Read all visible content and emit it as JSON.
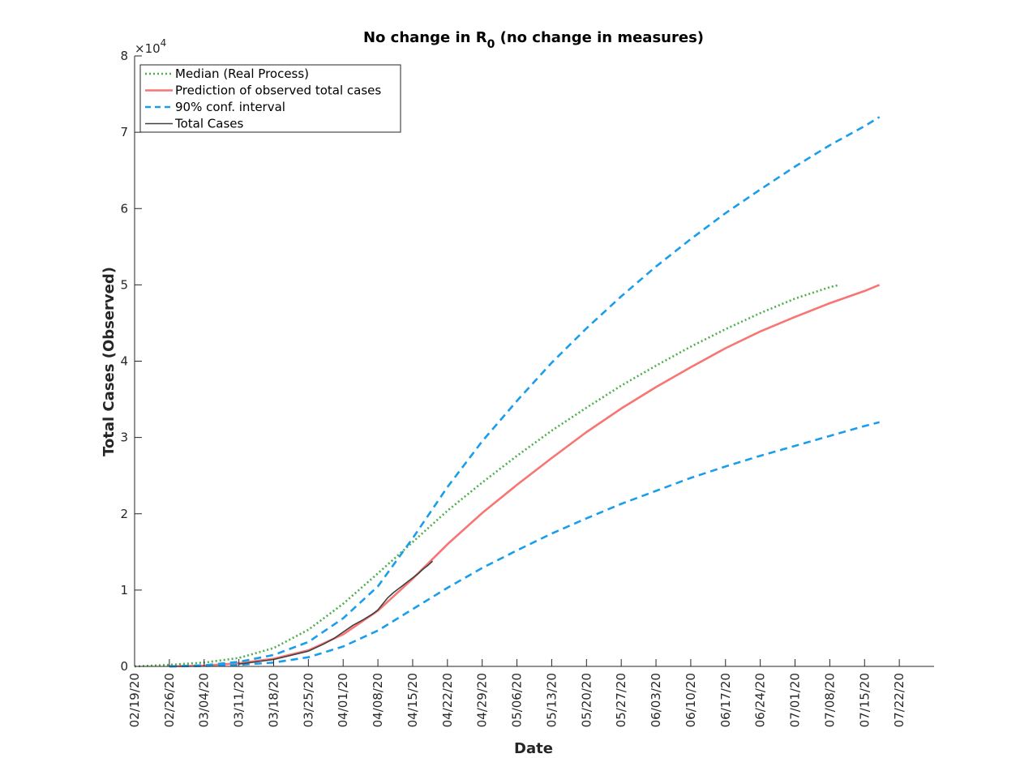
{
  "chart_data": {
    "type": "line",
    "title_main": "No change in R",
    "title_sub": "0",
    "title_rest": " (no change in measures)",
    "xlabel": "Date",
    "ylabel": "Total Cases (Observed)",
    "y_exponent_base": "×10",
    "y_exponent_power": "4",
    "xlim": [
      0,
      161
    ],
    "ylim": [
      0,
      80000
    ],
    "y_ticks": [
      {
        "value": 0,
        "label": "0"
      },
      {
        "value": 10000,
        "label": "1"
      },
      {
        "value": 20000,
        "label": "2"
      },
      {
        "value": 30000,
        "label": "3"
      },
      {
        "value": 40000,
        "label": "4"
      },
      {
        "value": 50000,
        "label": "5"
      },
      {
        "value": 60000,
        "label": "6"
      },
      {
        "value": 70000,
        "label": "7"
      },
      {
        "value": 80000,
        "label": "8"
      }
    ],
    "x_ticks": [
      {
        "value": 0,
        "label": "02/19/20"
      },
      {
        "value": 7,
        "label": "02/26/20"
      },
      {
        "value": 14,
        "label": "03/04/20"
      },
      {
        "value": 21,
        "label": "03/11/20"
      },
      {
        "value": 28,
        "label": "03/18/20"
      },
      {
        "value": 35,
        "label": "03/25/20"
      },
      {
        "value": 42,
        "label": "04/01/20"
      },
      {
        "value": 49,
        "label": "04/08/20"
      },
      {
        "value": 56,
        "label": "04/15/20"
      },
      {
        "value": 63,
        "label": "04/22/20"
      },
      {
        "value": 70,
        "label": "04/29/20"
      },
      {
        "value": 77,
        "label": "05/06/20"
      },
      {
        "value": 84,
        "label": "05/13/20"
      },
      {
        "value": 91,
        "label": "05/20/20"
      },
      {
        "value": 98,
        "label": "05/27/20"
      },
      {
        "value": 105,
        "label": "06/03/20"
      },
      {
        "value": 112,
        "label": "06/10/20"
      },
      {
        "value": 119,
        "label": "06/17/20"
      },
      {
        "value": 126,
        "label": "06/24/20"
      },
      {
        "value": 133,
        "label": "07/01/20"
      },
      {
        "value": 140,
        "label": "07/08/20"
      },
      {
        "value": 147,
        "label": "07/15/20"
      },
      {
        "value": 154,
        "label": "07/22/20"
      }
    ],
    "legend": {
      "position": "top-left",
      "entries": [
        {
          "label": "Median (Real Process)",
          "color": "#4daf4a",
          "style": "dotted"
        },
        {
          "label": "Prediction of observed total cases",
          "color": "#f87574",
          "style": "solid"
        },
        {
          "label": "90% conf. interval",
          "color": "#1a9eec",
          "style": "dashed"
        },
        {
          "label": "Total Cases",
          "color": "#404040",
          "style": "solid"
        }
      ]
    },
    "series": [
      {
        "name": "Median (Real Process)",
        "color": "#4daf4a",
        "style": "dotted",
        "x": [
          0,
          7,
          14,
          21,
          28,
          35,
          42,
          49,
          56,
          63,
          70,
          77,
          84,
          91,
          98,
          105,
          112,
          119,
          126,
          133,
          140,
          142
        ],
        "y": [
          0,
          200,
          500,
          1100,
          2400,
          4800,
          8200,
          12200,
          16300,
          20400,
          24100,
          27600,
          30900,
          33900,
          36800,
          39400,
          41900,
          44200,
          46300,
          48200,
          49700,
          50000
        ]
      },
      {
        "name": "Prediction of observed total cases",
        "color": "#f87574",
        "style": "solid",
        "x": [
          7,
          14,
          21,
          28,
          35,
          42,
          49,
          56,
          63,
          70,
          77,
          84,
          91,
          98,
          105,
          112,
          119,
          126,
          133,
          140,
          147,
          150
        ],
        "y": [
          0,
          100,
          400,
          1000,
          2100,
          4200,
          7300,
          11500,
          16000,
          20100,
          23800,
          27300,
          30700,
          33800,
          36600,
          39200,
          41700,
          43900,
          45800,
          47600,
          49200,
          50000
        ]
      },
      {
        "name": "90% conf. interval (upper)",
        "color": "#1a9eec",
        "style": "dashed",
        "x": [
          7,
          14,
          21,
          28,
          35,
          42,
          49,
          56,
          63,
          70,
          77,
          84,
          91,
          98,
          105,
          112,
          119,
          126,
          133,
          140,
          147,
          150
        ],
        "y": [
          0,
          150,
          600,
          1500,
          3200,
          6300,
          10500,
          16800,
          23500,
          29500,
          34800,
          39800,
          44300,
          48500,
          52400,
          56000,
          59400,
          62500,
          65500,
          68300,
          70800,
          72000
        ]
      },
      {
        "name": "90% conf. interval (lower)",
        "color": "#1a9eec",
        "style": "dashed",
        "x": [
          7,
          14,
          21,
          28,
          35,
          42,
          49,
          56,
          63,
          70,
          77,
          84,
          91,
          98,
          105,
          112,
          119,
          126,
          133,
          140,
          147,
          150
        ],
        "y": [
          0,
          50,
          200,
          500,
          1200,
          2600,
          4700,
          7500,
          10300,
          12900,
          15200,
          17400,
          19400,
          21300,
          23000,
          24700,
          26200,
          27600,
          28900,
          30200,
          31500,
          32000
        ]
      },
      {
        "name": "Total Cases",
        "color": "#404040",
        "style": "solid",
        "x": [
          21,
          28,
          35,
          38,
          40,
          42,
          44,
          46,
          48,
          49,
          50,
          51,
          52,
          53,
          54,
          55,
          56,
          57,
          58,
          59,
          60
        ],
        "y": [
          300,
          900,
          2000,
          2900,
          3600,
          4500,
          5400,
          6100,
          6900,
          7400,
          8200,
          9000,
          9600,
          10100,
          10600,
          11100,
          11600,
          12100,
          12700,
          13200,
          13800
        ]
      }
    ]
  }
}
